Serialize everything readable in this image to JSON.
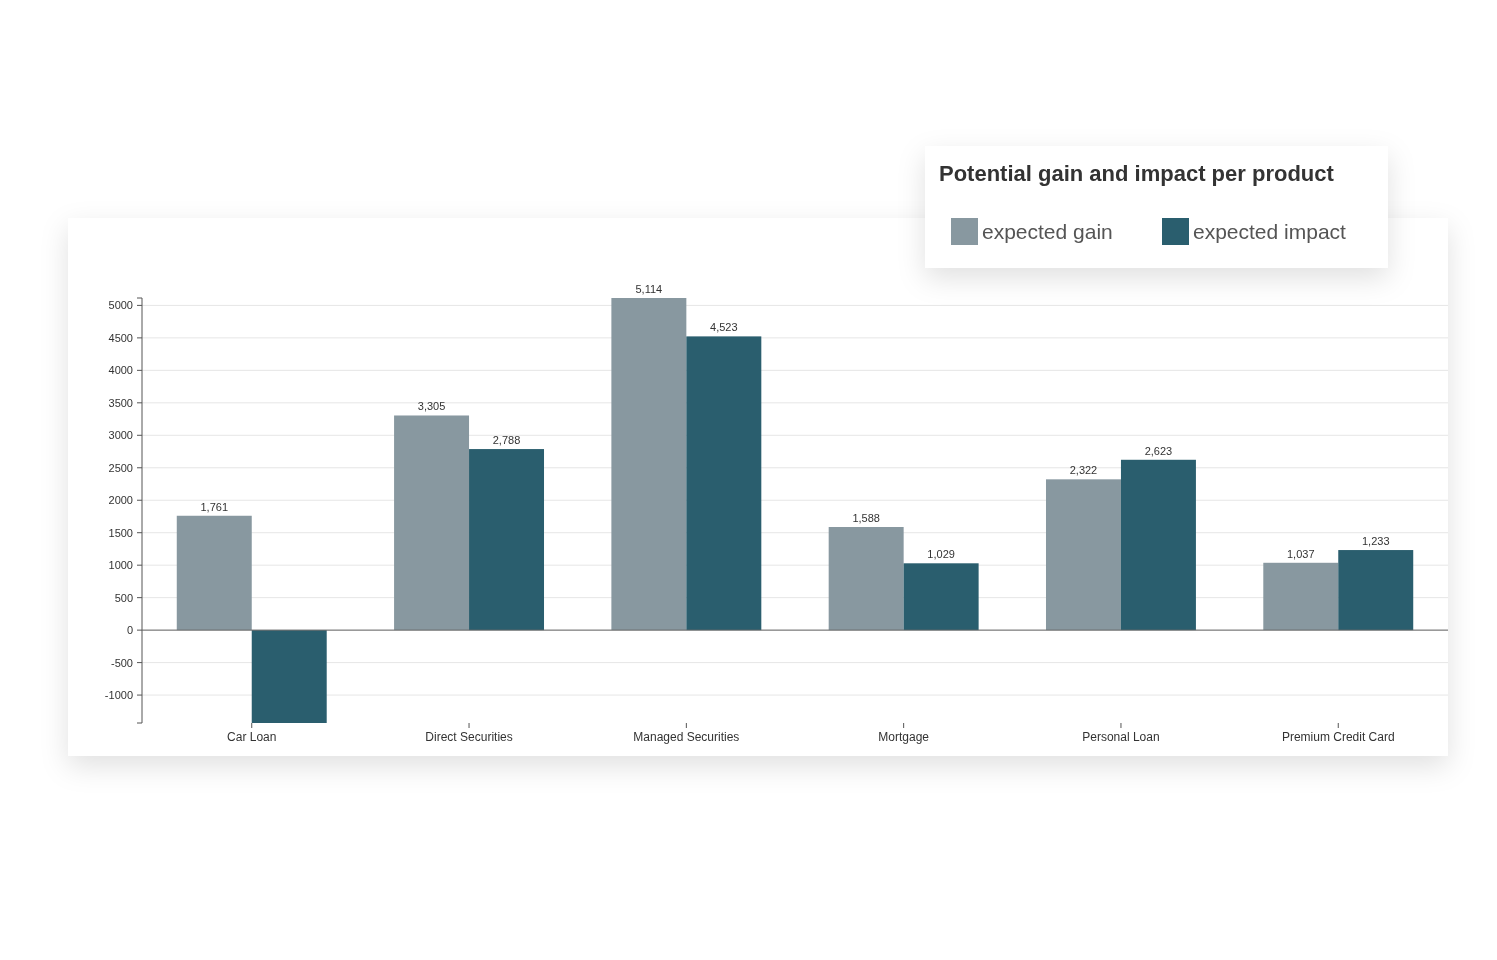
{
  "chart_data": {
    "type": "bar",
    "title": "Potential gain and impact per product",
    "categories": [
      "Car Loan",
      "Direct Securities",
      "Managed Securities",
      "Mortgage",
      "Personal Loan",
      "Premium Credit Card"
    ],
    "series": [
      {
        "name": "expected gain",
        "color": "#8898a0",
        "values": [
          1761,
          3305,
          5114,
          1588,
          2322,
          1037
        ],
        "value_labels": [
          "1,761",
          "3,305",
          "5,114",
          "1,588",
          "2,322",
          "1,037"
        ]
      },
      {
        "name": "expected impact",
        "color": "#2a5e6e",
        "values": [
          -1430,
          2788,
          4523,
          1029,
          2623,
          1233
        ],
        "value_labels": [
          null,
          "2,788",
          "4,523",
          "1,029",
          "2,623",
          "1,233"
        ]
      }
    ],
    "ylim": [
      -1430,
      5114
    ],
    "yticks": [
      -1000,
      -500,
      0,
      500,
      1000,
      1500,
      2000,
      2500,
      3000,
      3500,
      4000,
      4500,
      5000
    ],
    "grid": "y",
    "legend": "top right"
  }
}
